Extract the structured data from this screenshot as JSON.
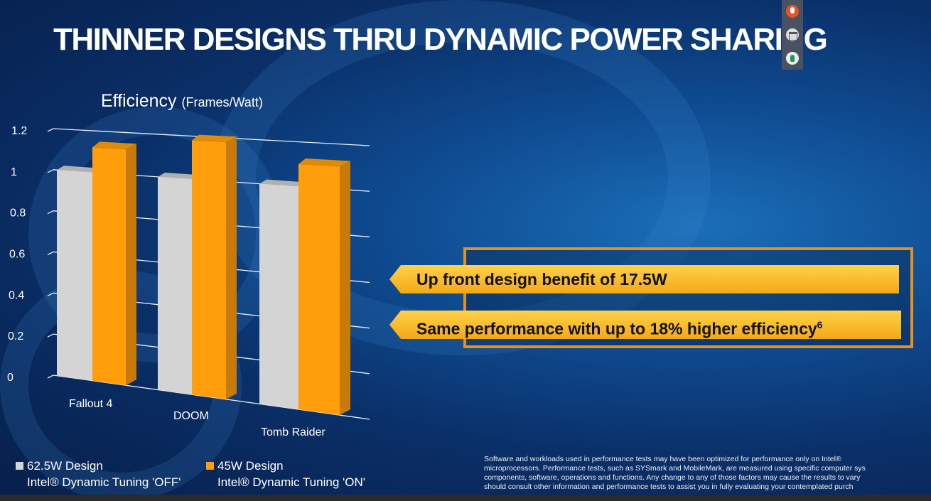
{
  "title": "THINNER DESIGNS THRU DYNAMIC POWER SHARING",
  "toolbar": {
    "icons": [
      "microphone-icon",
      "window-icon",
      "hand-icon"
    ]
  },
  "chart_data": {
    "type": "bar",
    "title": "Efficiency",
    "unit": "(Frames/Watt)",
    "categories": [
      "Fallout 4",
      "DOOM",
      "Tomb Raider"
    ],
    "yticks": [
      "0",
      "0.2",
      "0.4",
      "0.6",
      "0.8",
      "1",
      "1.2"
    ],
    "ylim": [
      0,
      1.2
    ],
    "grid": true,
    "style": "3d",
    "series": [
      {
        "name": "62.5W Design",
        "sub": "Intel® Dynamic Tuning 'OFF'",
        "color": "#d4d4d4",
        "values": [
          1.0,
          1.0,
          1.0
        ]
      },
      {
        "name": "45W Design",
        "sub": "Intel® Dynamic Tuning 'ON'",
        "color": "#ff9e0a",
        "values": [
          1.12,
          1.18,
          1.1
        ]
      }
    ],
    "legend": "bottom"
  },
  "callouts": {
    "line1": "Up front design benefit of 17.5W",
    "line2": "Same performance with up to 18% higher efficiency",
    "line2_sup": "6"
  },
  "disclaimer": [
    "Software and workloads used in performance tests may have been optimized for performance only on Intel®",
    "microprocessors. Performance tests, such as SYSmark and MobileMark, are measured using specific computer sys",
    "components, software, operations and functions. Any change to any of those factors may cause the results to vary",
    "should consult other information and performance tests to assist you in fully evaluating your contemplated purch"
  ]
}
